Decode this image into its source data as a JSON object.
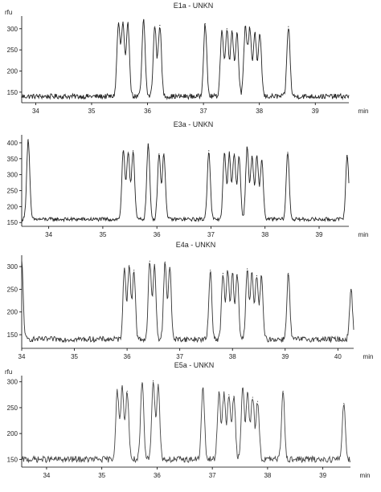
{
  "chart_data": [
    {
      "type": "line",
      "title": "E1a - UNKN",
      "ylabel": "rfu",
      "xlabel": "min",
      "xlim": [
        33.75,
        39.6
      ],
      "ylim": [
        125,
        330
      ],
      "xticks": [
        34,
        35,
        36,
        37,
        38,
        39
      ],
      "yticks": [
        150,
        200,
        250,
        300
      ],
      "baseline": 140,
      "peaks": [
        {
          "x": 35.48,
          "y": 310
        },
        {
          "x": 35.56,
          "y": 310
        },
        {
          "x": 35.65,
          "y": 310
        },
        {
          "x": 35.93,
          "y": 320
        },
        {
          "x": 36.13,
          "y": 305
        },
        {
          "x": 36.22,
          "y": 308
        },
        {
          "x": 37.03,
          "y": 312
        },
        {
          "x": 37.33,
          "y": 295
        },
        {
          "x": 37.42,
          "y": 300
        },
        {
          "x": 37.51,
          "y": 295
        },
        {
          "x": 37.6,
          "y": 290
        },
        {
          "x": 37.75,
          "y": 305
        },
        {
          "x": 37.83,
          "y": 300
        },
        {
          "x": 37.92,
          "y": 290
        },
        {
          "x": 38.01,
          "y": 285
        },
        {
          "x": 38.52,
          "y": 305
        }
      ]
    },
    {
      "type": "line",
      "title": "E3a - UNKN",
      "ylabel": "",
      "xlabel": "min",
      "xlim": [
        33.5,
        39.55
      ],
      "ylim": [
        138,
        425
      ],
      "xticks": [
        34,
        35,
        36,
        37,
        38,
        39
      ],
      "yticks": [
        150,
        200,
        250,
        300,
        350,
        400
      ],
      "baseline": 160,
      "peaks": [
        {
          "x": 33.62,
          "y": 410
        },
        {
          "x": 35.38,
          "y": 375
        },
        {
          "x": 35.47,
          "y": 370
        },
        {
          "x": 35.56,
          "y": 375
        },
        {
          "x": 35.84,
          "y": 395
        },
        {
          "x": 36.04,
          "y": 365
        },
        {
          "x": 36.13,
          "y": 365
        },
        {
          "x": 36.96,
          "y": 375
        },
        {
          "x": 37.25,
          "y": 365
        },
        {
          "x": 37.34,
          "y": 365
        },
        {
          "x": 37.43,
          "y": 365
        },
        {
          "x": 37.52,
          "y": 355
        },
        {
          "x": 37.67,
          "y": 385
        },
        {
          "x": 37.76,
          "y": 355
        },
        {
          "x": 37.85,
          "y": 355
        },
        {
          "x": 37.94,
          "y": 345
        },
        {
          "x": 38.42,
          "y": 370
        },
        {
          "x": 39.52,
          "y": 360
        }
      ]
    },
    {
      "type": "line",
      "title": "E4a - UNKN",
      "ylabel": "",
      "xlabel": "min",
      "xlim": [
        34,
        40.3
      ],
      "ylim": [
        120,
        325
      ],
      "xticks": [
        34,
        35,
        36,
        37,
        38,
        39,
        40
      ],
      "yticks": [
        150,
        200,
        250,
        300
      ],
      "baseline": 140,
      "peaks": [
        {
          "x": 34.0,
          "y": 310
        },
        {
          "x": 35.95,
          "y": 295
        },
        {
          "x": 36.04,
          "y": 302
        },
        {
          "x": 36.13,
          "y": 292
        },
        {
          "x": 36.43,
          "y": 312
        },
        {
          "x": 36.52,
          "y": 300
        },
        {
          "x": 36.72,
          "y": 310
        },
        {
          "x": 36.81,
          "y": 298
        },
        {
          "x": 37.58,
          "y": 292
        },
        {
          "x": 37.82,
          "y": 285
        },
        {
          "x": 37.91,
          "y": 290
        },
        {
          "x": 38.0,
          "y": 285
        },
        {
          "x": 38.09,
          "y": 282
        },
        {
          "x": 38.28,
          "y": 295
        },
        {
          "x": 38.37,
          "y": 285
        },
        {
          "x": 38.46,
          "y": 280
        },
        {
          "x": 38.55,
          "y": 278
        },
        {
          "x": 39.06,
          "y": 285
        },
        {
          "x": 40.25,
          "y": 250
        }
      ]
    },
    {
      "type": "line",
      "title": "E5a - UNKN",
      "ylabel": "rfu",
      "xlabel": "min",
      "xlim": [
        33.55,
        39.5
      ],
      "ylim": [
        135,
        312
      ],
      "xticks": [
        34,
        35,
        36,
        37,
        38,
        39
      ],
      "yticks": [
        150,
        200,
        250,
        300
      ],
      "baseline": 150,
      "peaks": [
        {
          "x": 35.28,
          "y": 282
        },
        {
          "x": 35.37,
          "y": 290
        },
        {
          "x": 35.46,
          "y": 282
        },
        {
          "x": 35.73,
          "y": 298
        },
        {
          "x": 35.93,
          "y": 302
        },
        {
          "x": 36.02,
          "y": 295
        },
        {
          "x": 36.83,
          "y": 288
        },
        {
          "x": 37.12,
          "y": 280
        },
        {
          "x": 37.21,
          "y": 275
        },
        {
          "x": 37.3,
          "y": 275
        },
        {
          "x": 37.39,
          "y": 272
        },
        {
          "x": 37.55,
          "y": 288
        },
        {
          "x": 37.64,
          "y": 278
        },
        {
          "x": 37.73,
          "y": 270
        },
        {
          "x": 37.82,
          "y": 262
        },
        {
          "x": 38.28,
          "y": 282
        },
        {
          "x": 39.38,
          "y": 258
        }
      ]
    }
  ]
}
